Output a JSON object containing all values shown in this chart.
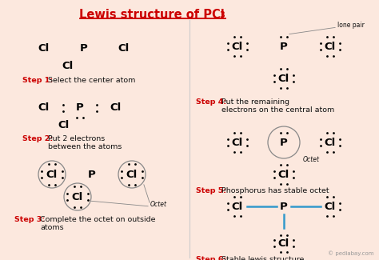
{
  "bg_color": "#fce8de",
  "title_color": "#cc0000",
  "step_color": "#cc0000",
  "text_color": "#111111",
  "bond_color": "#3399cc",
  "divider_color": "#cccccc",
  "watermark": "© pediabay.com",
  "title_main": "Lewis structure of PCl",
  "title_sub": "3",
  "step1_label": "Step 1:",
  "step1_desc": "Select the center atom",
  "step2_label": "Step 2:",
  "step2_desc": "Put 2 electrons\nbetween the atoms",
  "step3_label": "Step 3:",
  "step3_desc": "Complete the octet on outside\natoms",
  "step4_label": "Step 4:",
  "step4_desc": "Put the remaining\nelectrons on the central atom",
  "step5_label": "Step 5:",
  "step5_desc": "Phosphorus has stable octet",
  "step6_label": "Step 6:",
  "step6_desc": "Stable lewis structure",
  "lone_pair": "lone pair",
  "octet": "Octet"
}
